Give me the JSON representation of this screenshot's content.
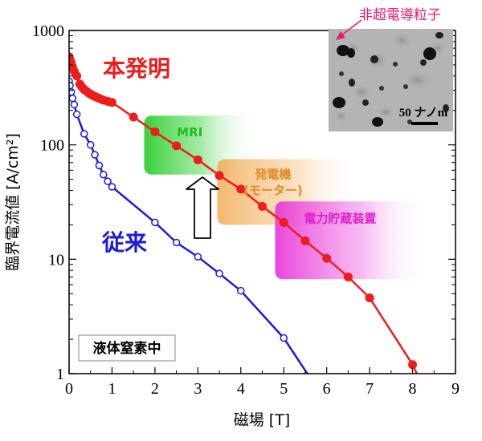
{
  "chart_data": {
    "type": "line",
    "xlabel": "磁場 [T]",
    "ylabel": "臨界電流値 [A/cm²]",
    "xlim": [
      0,
      9
    ],
    "ylim": [
      1,
      1000
    ],
    "yscale": "log",
    "x_ticks": [
      "0",
      "1",
      "2",
      "3",
      "4",
      "5",
      "6",
      "7",
      "8",
      "9"
    ],
    "y_ticks": [
      "1",
      "10",
      "100",
      "1000"
    ],
    "series": [
      {
        "name": "本発明",
        "color": "#ee1c1c",
        "marker": "filled-circle",
        "points": [
          [
            0.0,
            590
          ],
          [
            0.02,
            560
          ],
          [
            0.05,
            520
          ],
          [
            0.08,
            480
          ],
          [
            0.12,
            440
          ],
          [
            0.18,
            400
          ],
          [
            0.25,
            340
          ],
          [
            0.3,
            320
          ],
          [
            0.35,
            305
          ],
          [
            0.4,
            295
          ],
          [
            0.45,
            285
          ],
          [
            0.5,
            278
          ],
          [
            0.55,
            270
          ],
          [
            0.6,
            265
          ],
          [
            0.65,
            260
          ],
          [
            0.7,
            255
          ],
          [
            0.75,
            250
          ],
          [
            0.8,
            246
          ],
          [
            0.9,
            240
          ],
          [
            1.0,
            235
          ],
          [
            1.5,
            175
          ],
          [
            2.0,
            130
          ],
          [
            2.5,
            98
          ],
          [
            3.0,
            74
          ],
          [
            3.5,
            54
          ],
          [
            4.0,
            41
          ],
          [
            4.5,
            29
          ],
          [
            5.0,
            21
          ],
          [
            5.5,
            14.5
          ],
          [
            6.0,
            10.2
          ],
          [
            6.5,
            7.0
          ],
          [
            7.0,
            4.6
          ],
          [
            8.0,
            1.2
          ]
        ],
        "curve_end": [
          8.1,
          1.0
        ]
      },
      {
        "name": "従来",
        "color": "#1a1ae0",
        "marker": "open-circle",
        "points": [
          [
            0.0,
            360
          ],
          [
            0.02,
            330
          ],
          [
            0.05,
            290
          ],
          [
            0.08,
            255
          ],
          [
            0.12,
            225
          ],
          [
            0.18,
            185
          ],
          [
            0.35,
            125
          ],
          [
            0.5,
            100
          ],
          [
            0.6,
            82
          ],
          [
            0.7,
            66
          ],
          [
            0.8,
            55
          ],
          [
            0.9,
            48
          ],
          [
            1.0,
            43
          ],
          [
            2.0,
            21
          ],
          [
            2.5,
            14
          ],
          [
            3.0,
            10.5
          ],
          [
            3.5,
            7.5
          ],
          [
            4.0,
            5.3
          ],
          [
            5.0,
            2.05
          ]
        ],
        "curve_end": [
          5.55,
          1.0
        ]
      }
    ],
    "regions": [
      {
        "label": "MRI",
        "x": [
          1.75,
          4.4
        ],
        "y": [
          55,
          180
        ],
        "color": "#22cc22"
      },
      {
        "label": "発電機\n(モーター)",
        "x": [
          3.45,
          6.7
        ],
        "y": [
          20,
          75
        ],
        "color": "#f0a040"
      },
      {
        "label": "電力貯蔵装置",
        "x": [
          4.8,
          8.4
        ],
        "y": [
          6.7,
          32
        ],
        "color": "#e830d8"
      }
    ],
    "annotations": {
      "series_label_1": "本発明",
      "series_label_2": "従来",
      "condition_box": "液体窒素中",
      "inset_caption": "非超電導粒子",
      "scale_bar": "50 ナノm"
    }
  }
}
